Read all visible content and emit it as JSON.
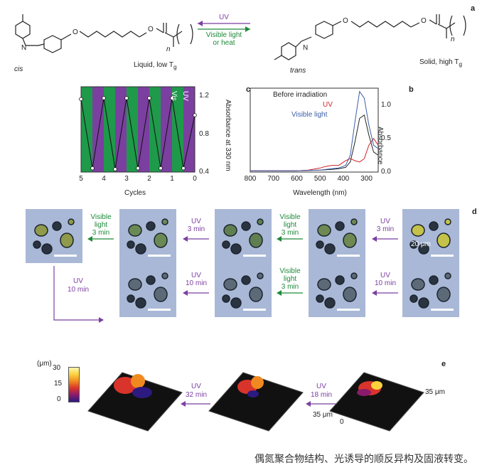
{
  "panel_labels": {
    "a": "a",
    "b": "b",
    "c": "c",
    "d": "d",
    "e": "e"
  },
  "panel_a": {
    "arrow_top": "UV",
    "arrow_bottom_line1": "Visible light",
    "arrow_bottom_line2": "or heat",
    "left_state": "Liquid, low T",
    "left_state_sub": "g",
    "left_isomer": "cis",
    "right_state": "Solid, high T",
    "right_state_sub": "g",
    "right_isomer": "trans",
    "n_left": "n",
    "n_right": "n",
    "o_label": "O",
    "n_atom": "N",
    "colors": {
      "uv": "#7b3fa0",
      "visible": "#1e8a3a"
    }
  },
  "panel_b": {
    "ylabel": "Absorbance",
    "xlabel": "Wavelength (nm)",
    "xticks": [
      "300",
      "400",
      "500",
      "600",
      "700",
      "800"
    ],
    "yticks": [
      "0.0",
      "0.5",
      "1.0"
    ],
    "legend": [
      "Before irradiation",
      "UV",
      "Visible light"
    ]
  },
  "panel_c": {
    "ylabel": "Absorbance at 330 nm",
    "xlabel": "Cycles",
    "xticks": [
      "0",
      "1",
      "2",
      "3",
      "4",
      "5"
    ],
    "yticks": [
      "0.4",
      "0.8",
      "1.2"
    ],
    "band_uv": "UV",
    "band_vis": "Vis"
  },
  "panel_d": {
    "scale": "20 μm",
    "row1_arrows": [
      {
        "l1": "UV",
        "l2": "3 min",
        "kind": "uv"
      },
      {
        "l1": "Visible",
        "l2": "light",
        "l3": "3 min",
        "kind": "vis"
      },
      {
        "l1": "UV",
        "l2": "3 min",
        "kind": "uv"
      },
      {
        "l1": "Visible",
        "l2": "light",
        "l3": "3 min",
        "kind": "vis"
      }
    ],
    "wrap_arrow": {
      "l1": "UV",
      "l2": "10 min"
    },
    "row2_arrows": [
      {
        "l1": "UV",
        "l2": "10 min",
        "kind": "uv"
      },
      {
        "l1": "Visible",
        "l2": "light",
        "l3": "3 min",
        "kind": "vis"
      },
      {
        "l1": "UV",
        "l2": "10 min",
        "kind": "uv"
      }
    ]
  },
  "panel_e": {
    "axis_label_1": "35 μm",
    "axis_label_2": "35 μm",
    "axis_zero": "0",
    "arrow_1": {
      "l1": "UV",
      "l2": "18 min"
    },
    "arrow_2": {
      "l1": "UV",
      "l2": "32 min"
    },
    "colorbar_title": "(μm)",
    "colorbar_ticks": [
      "30",
      "15",
      "0"
    ]
  },
  "caption": "偶氮聚合物结构、光诱导的顺反异构及固液转变。",
  "chart_data": [
    {
      "type": "line",
      "title": "",
      "xlabel": "Wavelength (nm)",
      "ylabel": "Absorbance",
      "xlim": [
        800,
        250
      ],
      "ylim": [
        0,
        1.25
      ],
      "legend_position": "top-left",
      "series": [
        {
          "name": "Before irradiation",
          "color": "#222222",
          "x": [
            250,
            270,
            290,
            310,
            330,
            350,
            370,
            390,
            420,
            450,
            500,
            600,
            700,
            800
          ],
          "y": [
            0.25,
            0.3,
            0.55,
            0.85,
            0.8,
            0.45,
            0.15,
            0.07,
            0.05,
            0.04,
            0.03,
            0.02,
            0.02,
            0.02
          ]
        },
        {
          "name": "UV",
          "color": "#d2232a",
          "x": [
            250,
            270,
            290,
            310,
            330,
            350,
            370,
            390,
            420,
            450,
            480,
            500,
            550,
            600,
            700,
            800
          ],
          "y": [
            0.4,
            0.5,
            0.4,
            0.2,
            0.15,
            0.17,
            0.2,
            0.17,
            0.1,
            0.1,
            0.08,
            0.06,
            0.03,
            0.02,
            0.02,
            0.02
          ]
        },
        {
          "name": "Visible light",
          "color": "#3a5da8",
          "x": [
            250,
            270,
            290,
            310,
            330,
            350,
            370,
            390,
            420,
            450,
            500,
            600,
            700,
            800
          ],
          "y": [
            0.35,
            0.4,
            0.7,
            1.1,
            1.2,
            0.75,
            0.25,
            0.1,
            0.06,
            0.05,
            0.03,
            0.02,
            0.02,
            0.02
          ]
        }
      ]
    },
    {
      "type": "line",
      "title": "",
      "xlabel": "Cycles",
      "ylabel": "Absorbance at 330 nm",
      "xlim": [
        5,
        0
      ],
      "ylim": [
        0.4,
        1.3
      ],
      "grid": false,
      "series": [
        {
          "name": "",
          "color": "#222222",
          "x": [
            0,
            0.5,
            1,
            1.5,
            2,
            2.5,
            3,
            3.5,
            4,
            4.5,
            5
          ],
          "y": [
            1.0,
            0.44,
            1.18,
            0.44,
            1.18,
            0.44,
            1.18,
            0.43,
            1.18,
            0.44,
            1.17
          ]
        }
      ]
    }
  ]
}
